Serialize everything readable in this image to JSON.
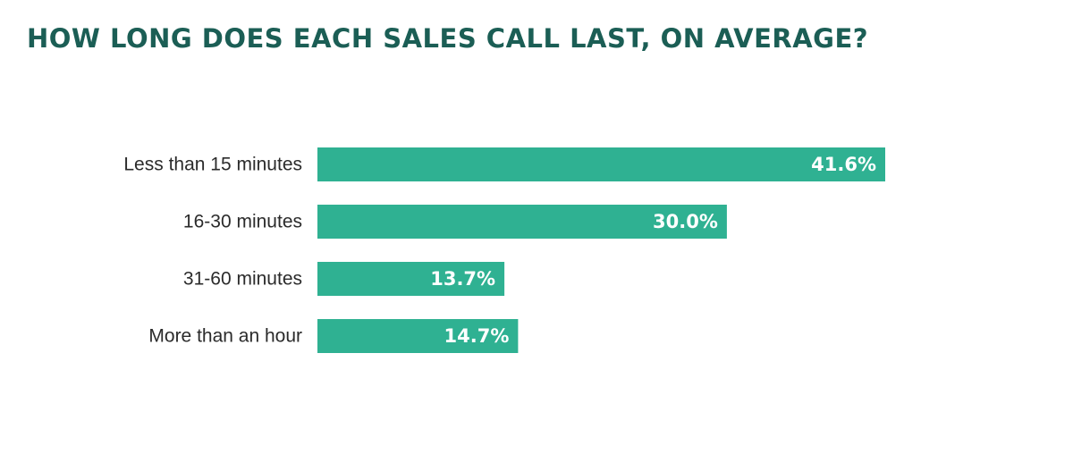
{
  "colors": {
    "title": "#1b5e55",
    "bar": "#2fb192",
    "value_label": "#ffffff",
    "category_label": "#2b2b2b",
    "background": "#ffffff"
  },
  "chart_data": {
    "type": "bar",
    "orientation": "horizontal",
    "title": "How long does each sales call last, on average?",
    "xlabel": "",
    "ylabel": "",
    "categories": [
      "Less than 15 minutes",
      "16-30 minutes",
      "31-60 minutes",
      "More than an hour"
    ],
    "values": [
      41.6,
      30.0,
      13.7,
      14.7
    ],
    "value_labels": [
      "41.6%",
      "30.0%",
      "13.7%",
      "14.7%"
    ],
    "unit": "%",
    "xlim": [
      0,
      41.6
    ],
    "grid": false,
    "legend": "none"
  }
}
